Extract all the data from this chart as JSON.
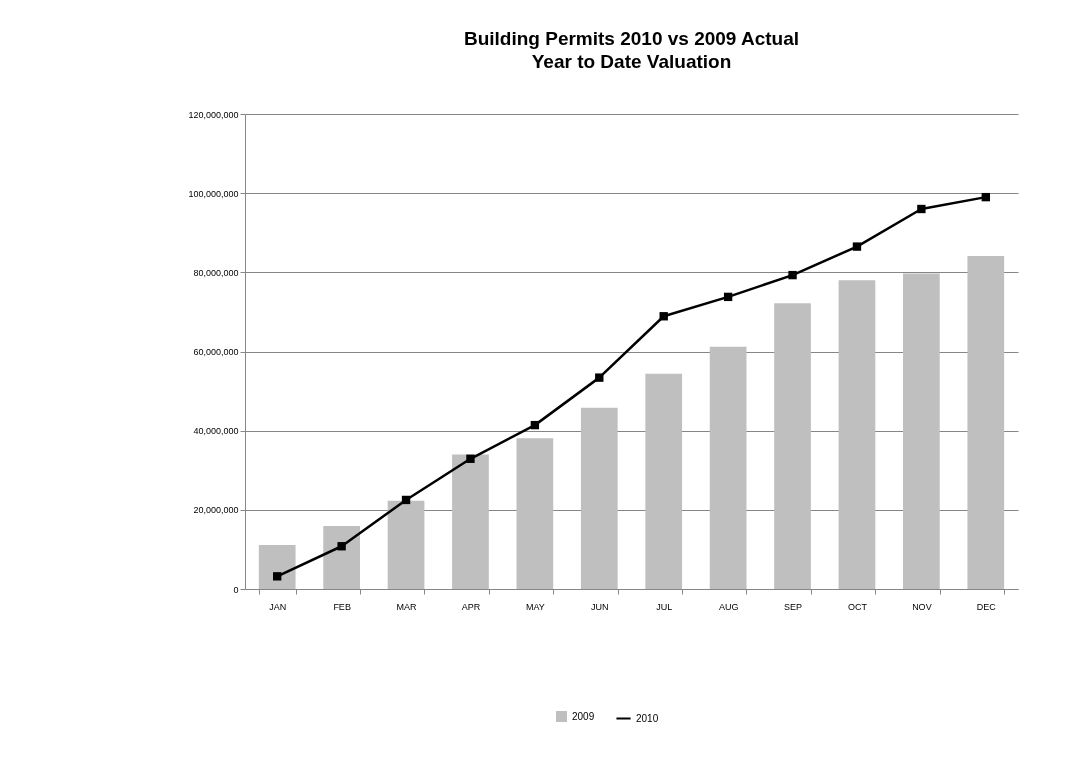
{
  "chart_data": {
    "type": "bar",
    "title": "Building Permits 2010 vs 2009 Actual",
    "subtitle": "Year to Date Valuation",
    "categories": [
      "JAN",
      "FEB",
      "MAR",
      "APR",
      "MAY",
      "JUN",
      "JUL",
      "AUG",
      "SEP",
      "OCT",
      "NOV",
      "DEC"
    ],
    "series": [
      {
        "name": "2009",
        "color": "#bfbfbf",
        "values": [
          11100000,
          15900000,
          22300000,
          34000000,
          38100000,
          45800000,
          54400000,
          61200000,
          72200000,
          78000000,
          79700000,
          84100000
        ]
      },
      {
        "name": "2010",
        "type": "line",
        "color": "#000000",
        "marker": "square",
        "line_style": "solid",
        "values": [
          3200000,
          10800000,
          22500000,
          32900000,
          41400000,
          53400000,
          68900000,
          73800000,
          79300000,
          86500000,
          96000000,
          99000000
        ]
      }
    ],
    "ylim": [
      0,
      120000000
    ],
    "yticks": [
      0,
      {
        "value": 20000000,
        "label": "20,000,000"
      },
      {
        "value": 40000000,
        "label": "40,000,000"
      },
      {
        "value": 60000000,
        "label": "60,000,000"
      },
      {
        "value": 80000000,
        "label": "80,000,000"
      },
      {
        "value": 100000000,
        "label": "100,000,000"
      },
      {
        "value": 120000000,
        "label": "120,000,000"
      }
    ],
    "grid": "y",
    "legend": "bottom"
  }
}
